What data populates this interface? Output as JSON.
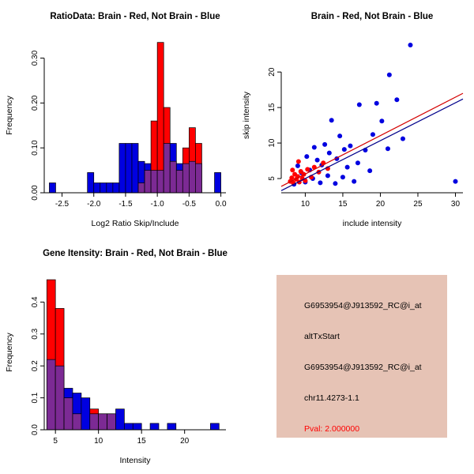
{
  "colors": {
    "red": "#ff0000",
    "blue": "#0000e0",
    "overlap": "#7c2a94",
    "line_red": "#d40000",
    "line_blue": "#00008b"
  },
  "chart_data": [
    {
      "type": "histogram",
      "title": "RatioData: Brain - Red, Not Brain - Blue",
      "xlabel": "Log2 Ratio Skip/Include",
      "ylabel": "Frequency",
      "legend": "Brain = red, Not Brain = blue, overlap = purple",
      "xlim": [
        -2.78,
        0.08
      ],
      "ylim": [
        0,
        0.345
      ],
      "xticks": [
        -2.5,
        -2.0,
        -1.5,
        -1.0,
        -0.5,
        0.0
      ],
      "xtick_labels": [
        "-2.5",
        "-2.0",
        "-1.5",
        "-1.0",
        "-0.5",
        "0.0"
      ],
      "yticks": [
        0.0,
        0.1,
        0.2,
        0.3
      ],
      "ytick_labels": [
        "0.00",
        "0.10",
        "0.20",
        "0.30"
      ],
      "bin_width": 0.1,
      "bins_format": "[bin_start, blue_frequency, red_frequency]",
      "bins": [
        [
          -2.7,
          0.022,
          0
        ],
        [
          -2.1,
          0.045,
          0
        ],
        [
          -2.0,
          0.022,
          0
        ],
        [
          -1.9,
          0.022,
          0
        ],
        [
          -1.8,
          0.022,
          0
        ],
        [
          -1.7,
          0.022,
          0
        ],
        [
          -1.6,
          0.11,
          0
        ],
        [
          -1.5,
          0.11,
          0
        ],
        [
          -1.4,
          0.11,
          0
        ],
        [
          -1.3,
          0.07,
          0.022
        ],
        [
          -1.2,
          0.065,
          0.05
        ],
        [
          -1.1,
          0.05,
          0.16
        ],
        [
          -1.0,
          0.05,
          0.335
        ],
        [
          -0.9,
          0.11,
          0.19
        ],
        [
          -0.8,
          0.11,
          0.07
        ],
        [
          -0.7,
          0.065,
          0.05
        ],
        [
          -0.6,
          0.065,
          0.1
        ],
        [
          -0.5,
          0.07,
          0.145
        ],
        [
          -0.4,
          0.065,
          0.11
        ],
        [
          -0.1,
          0.045,
          0
        ]
      ]
    },
    {
      "type": "scatter",
      "title": "Brain - Red, Not Brain - Blue",
      "xlabel": "include intensity",
      "ylabel": "skip intensity",
      "xlim": [
        6.8,
        31
      ],
      "ylim": [
        3.0,
        24.8
      ],
      "xticks": [
        10,
        15,
        20,
        25,
        30
      ],
      "xtick_labels": [
        "10",
        "15",
        "20",
        "25",
        "30"
      ],
      "yticks": [
        5,
        10,
        15,
        20
      ],
      "ytick_labels": [
        "5",
        "10",
        "15",
        "20"
      ],
      "series": [
        {
          "name": "Not Brain",
          "color": "#0000e0",
          "points": [
            [
              8.5,
              4.2
            ],
            [
              9.0,
              6.8
            ],
            [
              9.5,
              5.8
            ],
            [
              10.0,
              4.5
            ],
            [
              10.2,
              8.1
            ],
            [
              10.6,
              6.2
            ],
            [
              11.0,
              5.0
            ],
            [
              11.2,
              9.4
            ],
            [
              11.6,
              7.6
            ],
            [
              12.0,
              4.4
            ],
            [
              12.2,
              6.9
            ],
            [
              12.6,
              9.8
            ],
            [
              13.0,
              5.4
            ],
            [
              13.2,
              8.6
            ],
            [
              13.5,
              13.2
            ],
            [
              14.0,
              4.3
            ],
            [
              14.2,
              7.8
            ],
            [
              14.6,
              11.0
            ],
            [
              15.0,
              5.2
            ],
            [
              15.2,
              9.1
            ],
            [
              15.6,
              6.6
            ],
            [
              16.0,
              9.6
            ],
            [
              16.5,
              4.6
            ],
            [
              17.0,
              7.2
            ],
            [
              17.2,
              15.4
            ],
            [
              18.0,
              9.0
            ],
            [
              18.6,
              6.1
            ],
            [
              19.0,
              11.2
            ],
            [
              19.5,
              15.6
            ],
            [
              20.2,
              13.1
            ],
            [
              21.0,
              9.2
            ],
            [
              21.2,
              19.6
            ],
            [
              22.2,
              16.1
            ],
            [
              23.0,
              10.6
            ],
            [
              24.0,
              23.8
            ],
            [
              30.0,
              4.6
            ]
          ]
        },
        {
          "name": "Brain",
          "color": "#ff0000",
          "points": [
            [
              8.0,
              4.6
            ],
            [
              8.2,
              5.1
            ],
            [
              8.3,
              6.2
            ],
            [
              8.4,
              4.4
            ],
            [
              8.6,
              5.6
            ],
            [
              8.8,
              4.9
            ],
            [
              9.0,
              5.3
            ],
            [
              9.1,
              7.4
            ],
            [
              9.2,
              4.5
            ],
            [
              9.4,
              6.0
            ],
            [
              9.6,
              5.0
            ],
            [
              9.8,
              5.6
            ],
            [
              10.0,
              4.7
            ],
            [
              10.3,
              6.3
            ],
            [
              10.8,
              5.2
            ],
            [
              11.2,
              6.6
            ],
            [
              11.8,
              5.9
            ],
            [
              12.4,
              7.2
            ],
            [
              13.0,
              6.4
            ]
          ]
        }
      ],
      "lines": [
        {
          "name": "brain-fit-line",
          "color": "#d40000",
          "x": [
            6.8,
            31
          ],
          "y": [
            3.9,
            17.0
          ]
        },
        {
          "name": "notbrain-fit-line",
          "color": "#00008b",
          "x": [
            6.8,
            31
          ],
          "y": [
            3.3,
            16.2
          ]
        }
      ]
    },
    {
      "type": "histogram",
      "title": "Gene Itensity: Brain - Red, Not Brain - Blue",
      "xlabel": "Intensity",
      "ylabel": "Frequency",
      "legend": "Brain = red, Not Brain = blue, overlap = purple",
      "xlim": [
        3.7,
        24.8
      ],
      "ylim": [
        0,
        0.485
      ],
      "xticks": [
        5,
        10,
        15,
        20
      ],
      "xtick_labels": [
        "5",
        "10",
        "15",
        "20"
      ],
      "yticks": [
        0.0,
        0.1,
        0.2,
        0.3,
        0.4
      ],
      "ytick_labels": [
        "0.0",
        "0.1",
        "0.2",
        "0.3",
        "0.4"
      ],
      "bin_width": 1,
      "bins_format": "[bin_start, blue_frequency, red_frequency]",
      "bins": [
        [
          4,
          0.22,
          0.47
        ],
        [
          5,
          0.2,
          0.38
        ],
        [
          6,
          0.13,
          0.1
        ],
        [
          7,
          0.115,
          0.05
        ],
        [
          8,
          0.1,
          0
        ],
        [
          9,
          0.05,
          0.065
        ],
        [
          10,
          0.05,
          0.05
        ],
        [
          11,
          0.05,
          0.05
        ],
        [
          12,
          0.065,
          0
        ],
        [
          13,
          0.02,
          0
        ],
        [
          14,
          0.02,
          0
        ],
        [
          16,
          0.02,
          0
        ],
        [
          18,
          0.02,
          0
        ],
        [
          23,
          0.02,
          0
        ]
      ]
    }
  ],
  "info": {
    "bg_color": "#e6c3b5",
    "pval_color": "#ff0000",
    "lines": [
      "G6953954@J913592_RC@i_at",
      "altTxStart",
      "G6953954@J913592_RC@i_at",
      "chr11.4273-1.1",
      "Pval: 2.000000"
    ]
  }
}
